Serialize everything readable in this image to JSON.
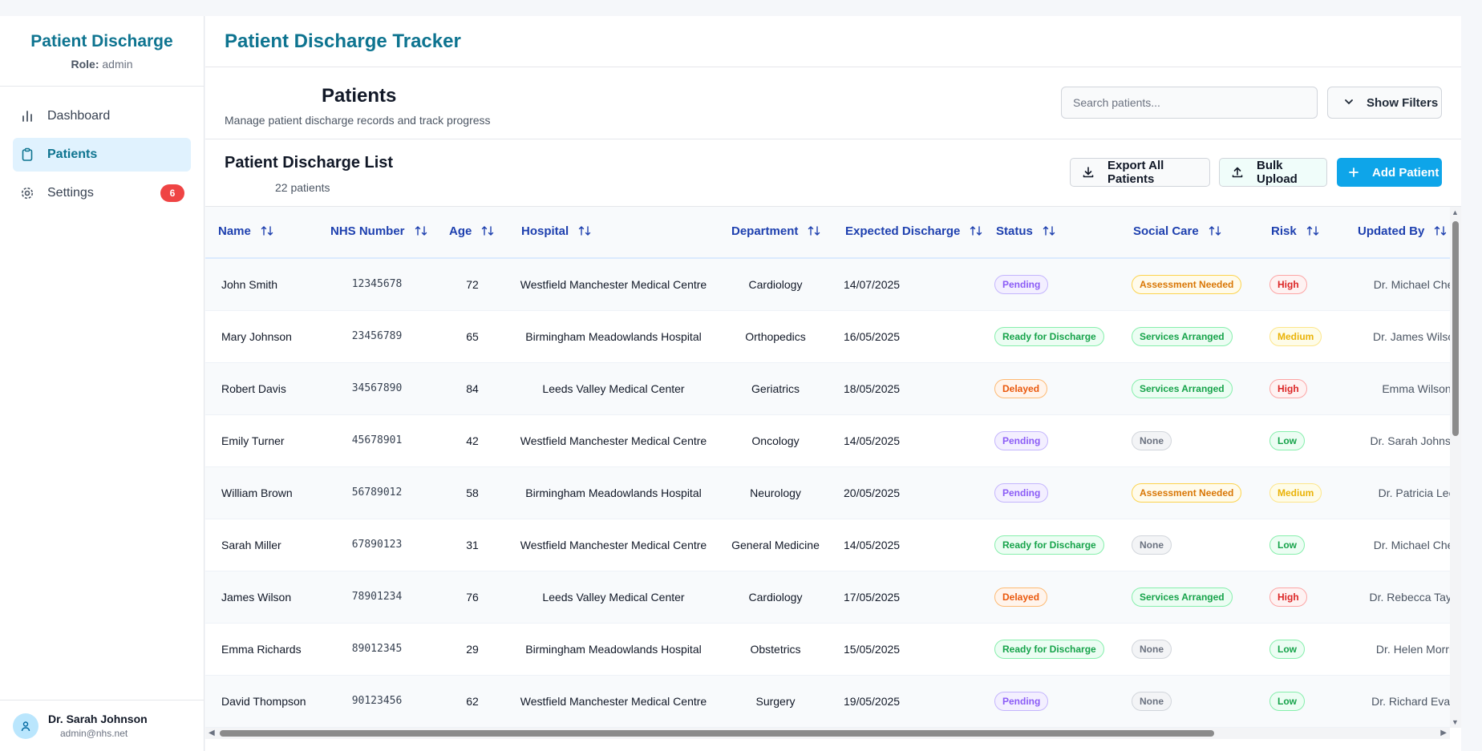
{
  "sidebar": {
    "brand_title": "Patient Discharge",
    "role_label": "Role:",
    "role_value": "admin",
    "items": [
      {
        "label": "Dashboard",
        "icon": "bar-chart-icon"
      },
      {
        "label": "Patients",
        "icon": "clipboard-icon",
        "active": true
      },
      {
        "label": "Settings",
        "icon": "gear-icon",
        "badge": "6"
      }
    ],
    "user": {
      "name": "Dr. Sarah Johnson",
      "email": "admin@nhs.net"
    }
  },
  "topbar": {
    "title": "Patient Discharge Tracker"
  },
  "page": {
    "title": "Patients",
    "subtitle": "Manage patient discharge records and track progress",
    "search_placeholder": "Search patients...",
    "filters_label": "Show Filters"
  },
  "list": {
    "title": "Patient Discharge List",
    "count": "22 patients",
    "export_label": "Export All Patients",
    "bulk_label": "Bulk Upload",
    "add_label": "Add Patient"
  },
  "table": {
    "headers": [
      "Name",
      "NHS Number",
      "Age",
      "Hospital",
      "Department",
      "Expected Discharge",
      "Status",
      "Social Care",
      "Risk",
      "Updated By"
    ],
    "rows": [
      {
        "name": "John Smith",
        "nhs": "12345678",
        "age": "72",
        "hospital": "Westfield Manchester Medical Centre",
        "department": "Cardiology",
        "discharge": "14/07/2025",
        "status": "Pending",
        "social": "Assessment Needed",
        "risk": "High",
        "updated": "Dr. Michael Chen"
      },
      {
        "name": "Mary Johnson",
        "nhs": "23456789",
        "age": "65",
        "hospital": "Birmingham Meadowlands Hospital",
        "department": "Orthopedics",
        "discharge": "16/05/2025",
        "status": "Ready for Discharge",
        "social": "Services Arranged",
        "risk": "Medium",
        "updated": "Dr. James Wilson"
      },
      {
        "name": "Robert Davis",
        "nhs": "34567890",
        "age": "84",
        "hospital": "Leeds Valley Medical Center",
        "department": "Geriatrics",
        "discharge": "18/05/2025",
        "status": "Delayed",
        "social": "Services Arranged",
        "risk": "High",
        "updated": "Emma Wilson"
      },
      {
        "name": "Emily Turner",
        "nhs": "45678901",
        "age": "42",
        "hospital": "Westfield Manchester Medical Centre",
        "department": "Oncology",
        "discharge": "14/05/2025",
        "status": "Pending",
        "social": "None",
        "risk": "Low",
        "updated": "Dr. Sarah Johnson"
      },
      {
        "name": "William Brown",
        "nhs": "56789012",
        "age": "58",
        "hospital": "Birmingham Meadowlands Hospital",
        "department": "Neurology",
        "discharge": "20/05/2025",
        "status": "Pending",
        "social": "Assessment Needed",
        "risk": "Medium",
        "updated": "Dr. Patricia Lee"
      },
      {
        "name": "Sarah Miller",
        "nhs": "67890123",
        "age": "31",
        "hospital": "Westfield Manchester Medical Centre",
        "department": "General Medicine",
        "discharge": "14/05/2025",
        "status": "Ready for Discharge",
        "social": "None",
        "risk": "Low",
        "updated": "Dr. Michael Chen"
      },
      {
        "name": "James Wilson",
        "nhs": "78901234",
        "age": "76",
        "hospital": "Leeds Valley Medical Center",
        "department": "Cardiology",
        "discharge": "17/05/2025",
        "status": "Delayed",
        "social": "Services Arranged",
        "risk": "High",
        "updated": "Dr. Rebecca Taylor"
      },
      {
        "name": "Emma Richards",
        "nhs": "89012345",
        "age": "29",
        "hospital": "Birmingham Meadowlands Hospital",
        "department": "Obstetrics",
        "discharge": "15/05/2025",
        "status": "Ready for Discharge",
        "social": "None",
        "risk": "Low",
        "updated": "Dr. Helen Morris"
      },
      {
        "name": "David Thompson",
        "nhs": "90123456",
        "age": "62",
        "hospital": "Westfield Manchester Medical Centre",
        "department": "Surgery",
        "discharge": "19/05/2025",
        "status": "Pending",
        "social": "None",
        "risk": "Low",
        "updated": "Dr. Richard Evans"
      }
    ]
  },
  "colors": {
    "accent": "#0e7490",
    "primary_button": "#0ea5e9",
    "pending": "#8b5cf6",
    "ready": "#16a34a",
    "delayed": "#ea580c",
    "assessment": "#d97706",
    "none": "#6b7280",
    "high": "#dc2626",
    "medium": "#eab308",
    "low": "#16a34a"
  }
}
